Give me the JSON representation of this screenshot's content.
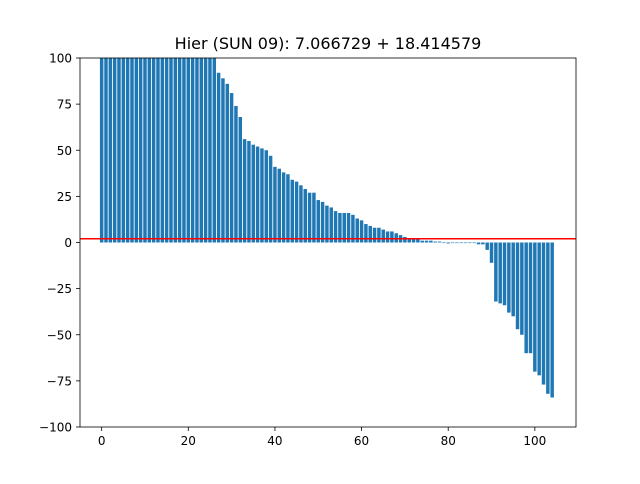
{
  "chart_data": {
    "type": "bar",
    "title": "Hier (SUN 09): 7.066729 + 18.414579",
    "xlabel": "",
    "ylabel": "",
    "xlim": [
      -5,
      109.5
    ],
    "ylim": [
      -100,
      100
    ],
    "x_ticks": [
      0,
      20,
      40,
      60,
      80,
      100
    ],
    "y_ticks": [
      -100,
      -75,
      -50,
      -25,
      0,
      25,
      50,
      75,
      100
    ],
    "grid": false,
    "bar_color": "#1f77b4",
    "reference_line": {
      "y": 2,
      "color": "#ff0000"
    },
    "x": [
      0,
      1,
      2,
      3,
      4,
      5,
      6,
      7,
      8,
      9,
      10,
      11,
      12,
      13,
      14,
      15,
      16,
      17,
      18,
      19,
      20,
      21,
      22,
      23,
      24,
      25,
      26,
      27,
      28,
      29,
      30,
      31,
      32,
      33,
      34,
      35,
      36,
      37,
      38,
      39,
      40,
      41,
      42,
      43,
      44,
      45,
      46,
      47,
      48,
      49,
      50,
      51,
      52,
      53,
      54,
      55,
      56,
      57,
      58,
      59,
      60,
      61,
      62,
      63,
      64,
      65,
      66,
      67,
      68,
      69,
      70,
      71,
      72,
      73,
      74,
      75,
      76,
      77,
      78,
      79,
      80,
      81,
      82,
      83,
      84,
      85,
      86,
      87,
      88,
      89,
      90,
      91,
      92,
      93,
      94,
      95,
      96,
      97,
      98,
      99,
      100,
      101,
      102,
      103,
      104
    ],
    "values": [
      100,
      100,
      100,
      100,
      100,
      100,
      100,
      100,
      100,
      100,
      100,
      100,
      100,
      100,
      100,
      100,
      100,
      100,
      100,
      100,
      100,
      100,
      100,
      100,
      100,
      100,
      100,
      92,
      89,
      86,
      81,
      74,
      68,
      56,
      55,
      53,
      52,
      51,
      50,
      47,
      41,
      40,
      38,
      37,
      34,
      33,
      31,
      29,
      27,
      27,
      23,
      22,
      20,
      19,
      17,
      16,
      16,
      16,
      15,
      13,
      12,
      10,
      9,
      8,
      8,
      7,
      6,
      6,
      5,
      4,
      3,
      2,
      2,
      2,
      1,
      1,
      1,
      0.5,
      0.5,
      0,
      -0.5,
      0,
      0,
      0,
      0,
      0,
      0,
      -1,
      -1,
      -4,
      -11,
      -32,
      -33,
      -34,
      -38,
      -40,
      -47,
      -50,
      -60,
      -60,
      -70,
      -72,
      -77,
      -82,
      -84
    ]
  }
}
